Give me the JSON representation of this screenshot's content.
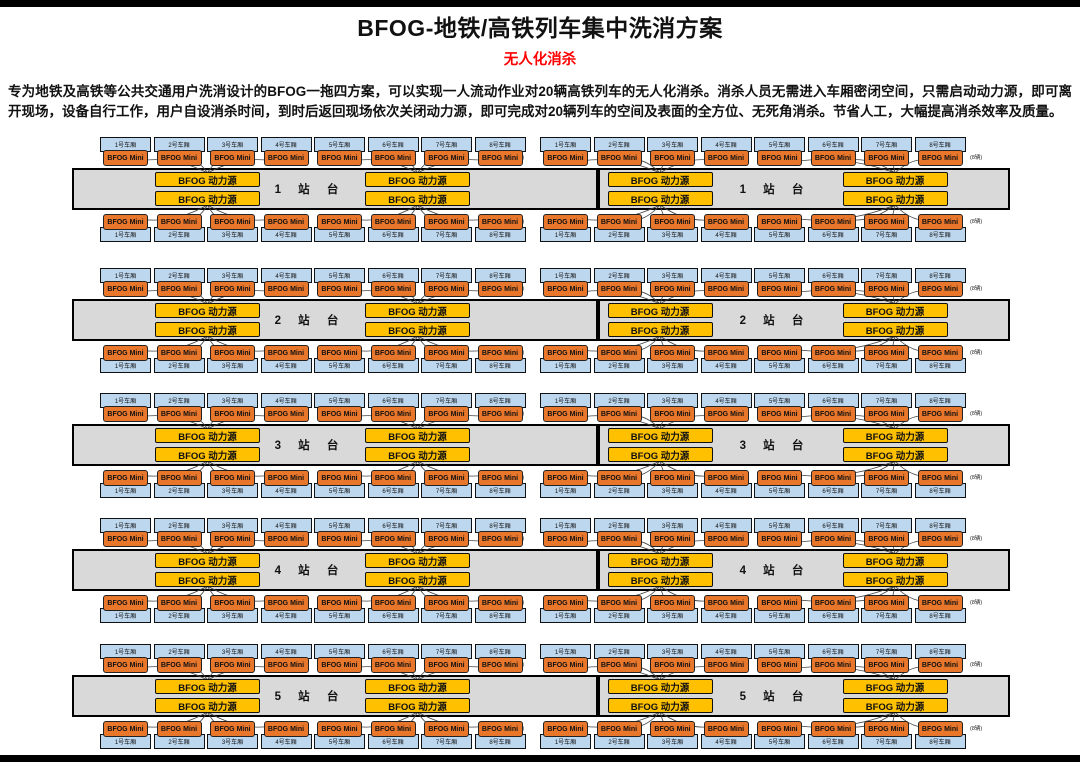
{
  "header": {
    "title": "BFOG-地铁/高铁列车集中洗消方案",
    "subtitle": "无人化消杀",
    "description": "专为地铁及高铁等公共交通用户洗消设计的BFOG一拖四方案，可以实现一人流动作业对20辆高铁列车的无人化消杀。消杀人员无需进入车厢密闭空间，只需启动动力源，即可离开现场，设备自行工作，用户自设消杀时间，到时后返回现场依次关闭动力源，即可完成对20辆列车的空间及表面的全方位、无死角消杀。节省人工，大幅提高消杀效率及质量。"
  },
  "labels": {
    "mini_unit": "BFOG Mini",
    "power_unit": "BFOG 动力源",
    "group_tag": "(8辆)",
    "carriages": [
      "1号车厢",
      "2号车厢",
      "3号车厢",
      "4号车厢",
      "5号车厢",
      "6号车厢",
      "7号车厢",
      "8号车厢"
    ]
  },
  "platforms": [
    {
      "number": "1",
      "label": "1 站 台"
    },
    {
      "number": "2",
      "label": "2 站 台"
    },
    {
      "number": "3",
      "label": "3 站 台"
    },
    {
      "number": "4",
      "label": "4 站 台"
    },
    {
      "number": "5",
      "label": "5 站 台"
    }
  ],
  "colors": {
    "subtitle_red": "#ff0000",
    "mini_fill": "#e8762b",
    "power_fill": "#ffc000",
    "carriage_fill": "#bdd7ee",
    "platform_fill": "#d9d9d9"
  }
}
